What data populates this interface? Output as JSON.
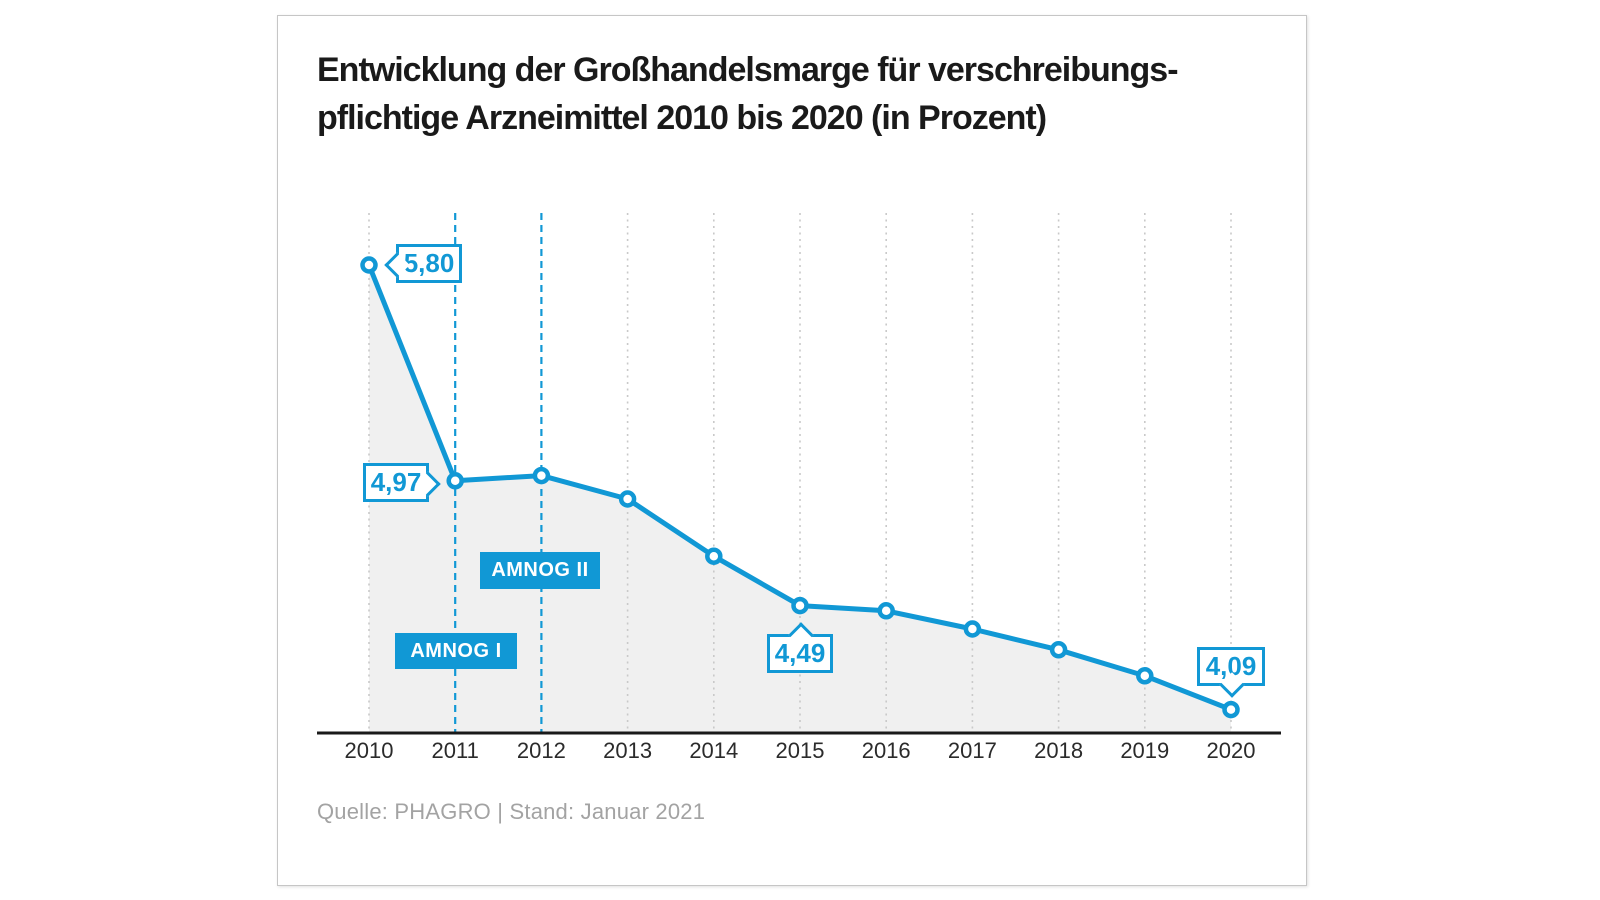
{
  "page": {
    "background": "#ffffff"
  },
  "card": {
    "title_lines": [
      "Entwicklung der Großhandelsmarge für verschreibungs-",
      "pflichtige Arzneimittel 2010 bis 2020 (in Prozent)"
    ],
    "source": "Quelle: PHAGRO | Stand: Januar 2021"
  },
  "colors": {
    "accent_blue": "#1198d5",
    "area_fill": "#f0f0f0",
    "grid_gray": "#c9c9c9",
    "axis_black": "#1a1a1a",
    "year_label": "#2b2b2b",
    "title_text": "#1a1a1a",
    "source_text": "#a3a3a3",
    "card_border": "#c6c6c6",
    "marker_fill": "#ffffff"
  },
  "chart_data": {
    "type": "line",
    "title": "Entwicklung der Großhandelsmarge für verschreibungspflichtige Arzneimittel 2010 bis 2020 (in Prozent)",
    "xlabel": "",
    "ylabel": "",
    "categories": [
      "2010",
      "2011",
      "2012",
      "2013",
      "2014",
      "2015",
      "2016",
      "2017",
      "2018",
      "2019",
      "2020"
    ],
    "values": [
      5.8,
      4.97,
      4.99,
      4.9,
      4.68,
      4.49,
      4.47,
      4.4,
      4.32,
      4.22,
      4.09
    ],
    "ylim": [
      4.0,
      6.0
    ],
    "grid": "vertical dotted gridlines, no horizontal grid, no y-axis",
    "legend": "none",
    "area_shaded": true,
    "highlighted_years": [
      "2011",
      "2012"
    ],
    "annotations": [
      {
        "year": "2010",
        "value": 5.8,
        "label": "5,80",
        "pointer": "left"
      },
      {
        "year": "2011",
        "value": 4.97,
        "label": "4,97",
        "pointer": "right"
      },
      {
        "year": "2015",
        "value": 4.49,
        "label": "4,49",
        "pointer": "up"
      },
      {
        "year": "2020",
        "value": 4.09,
        "label": "4,09",
        "pointer": "down"
      }
    ],
    "event_labels": [
      {
        "year": "2011",
        "label": "AMNOG I"
      },
      {
        "year": "2012",
        "label": "AMNOG II"
      }
    ]
  }
}
